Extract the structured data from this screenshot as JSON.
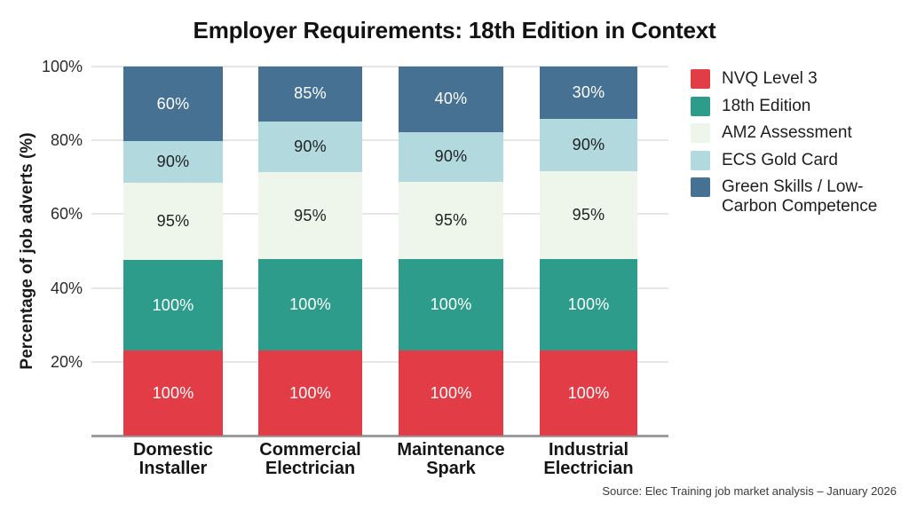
{
  "source": {
    "text": "Source: Elec Training job market analysis – January 2026"
  },
  "chart_data": {
    "type": "bar",
    "stacked": true,
    "title": "Employer Requirements: 18th Edition in Context",
    "xlabel": "",
    "ylabel": "Percentage of job adverts (%)",
    "ylim": [
      0,
      100
    ],
    "y_ticks": [
      100,
      80,
      60,
      40,
      20
    ],
    "y_tick_suffix": "%",
    "grid": true,
    "legend_position": "right",
    "categories": [
      "Domestic Installer",
      "Commercial Electrician",
      "Maintenance Spark",
      "Industrial Electrician"
    ],
    "category_lines": [
      [
        "Domestic",
        "Installer"
      ],
      [
        "Commercial",
        "Electrician"
      ],
      [
        "Maintenance",
        "Spark"
      ],
      [
        "Industrial",
        "Electrician"
      ]
    ],
    "series": [
      {
        "name": "NVQ Level 3",
        "color": "#e23c46",
        "label_color": "#ffffff",
        "values": [
          100,
          100,
          100,
          100
        ],
        "render_heights_pct": [
          23.0,
          23.0,
          23.0,
          23.0
        ]
      },
      {
        "name": "18th Edition",
        "color": "#2d9c8b",
        "label_color": "#ffffff",
        "values": [
          100,
          100,
          100,
          100
        ],
        "render_heights_pct": [
          24.5,
          24.8,
          24.8,
          24.8
        ]
      },
      {
        "name": "AM2 Assessment",
        "color": "#eef6ec",
        "label_color": "#222222",
        "values": [
          95,
          95,
          95,
          95
        ],
        "render_heights_pct": [
          21.0,
          23.5,
          20.9,
          23.8
        ]
      },
      {
        "name": "ECS Gold Card",
        "color": "#b2dade",
        "label_color": "#222222",
        "values": [
          90,
          90,
          90,
          90
        ],
        "render_heights_pct": [
          11.3,
          13.9,
          13.6,
          14.1
        ]
      },
      {
        "name": "Green Skills / Low-Carbon Competence",
        "legend_lines": [
          "Green Skills / Low-",
          "Carbon Competence"
        ],
        "color": "#467192",
        "label_color": "#ffffff",
        "values": [
          60,
          85,
          40,
          30
        ],
        "render_heights_pct": [
          20.2,
          14.8,
          17.7,
          14.3
        ]
      }
    ]
  }
}
